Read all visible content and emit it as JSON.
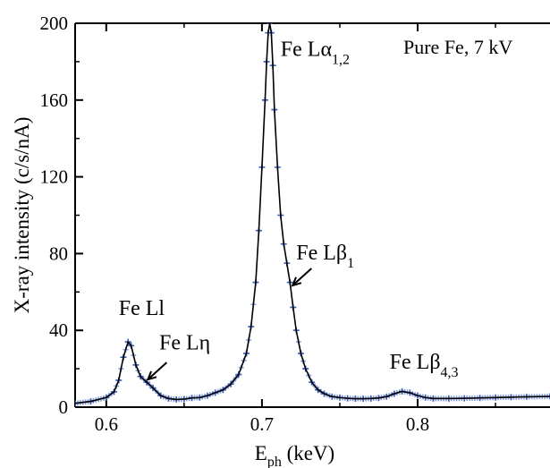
{
  "chart_data": {
    "type": "line",
    "title": "",
    "xlabel": {
      "main": "E",
      "sub": "ph",
      "unit": " (keV)"
    },
    "ylabel": "X-ray intensity (c/s/nA)",
    "xlim": [
      0.58,
      0.885
    ],
    "ylim": [
      0,
      200
    ],
    "xticks": [
      0.6,
      0.7,
      0.8
    ],
    "xtick_labels": [
      "0.6",
      "0.7",
      "0.8"
    ],
    "yticks": [
      0,
      40,
      80,
      120,
      160,
      200
    ],
    "ytick_labels": [
      "0",
      "40",
      "80",
      "120",
      "160",
      "200"
    ],
    "grid": false,
    "sample_label": "Pure Fe, 7 kV",
    "colors": {
      "data_marker": "#3f5fb8",
      "data_fill": "#8aa0dc",
      "fit_line": "#000000",
      "axis": "#000000"
    },
    "series": [
      {
        "style": "markers-with-line",
        "x": [
          0.58,
          0.59,
          0.6,
          0.605,
          0.608,
          0.611,
          0.614,
          0.616,
          0.619,
          0.622,
          0.626,
          0.63,
          0.635,
          0.64,
          0.645,
          0.65,
          0.655,
          0.66,
          0.665,
          0.67,
          0.675,
          0.68,
          0.685,
          0.69,
          0.693,
          0.696,
          0.698,
          0.7,
          0.702,
          0.703,
          0.704,
          0.705,
          0.706,
          0.707,
          0.708,
          0.71,
          0.712,
          0.714,
          0.716,
          0.718,
          0.72,
          0.722,
          0.725,
          0.728,
          0.732,
          0.736,
          0.74,
          0.745,
          0.75,
          0.755,
          0.76,
          0.765,
          0.77,
          0.775,
          0.78,
          0.785,
          0.79,
          0.795,
          0.8,
          0.805,
          0.81,
          0.82,
          0.83,
          0.84,
          0.85,
          0.86,
          0.87,
          0.885
        ],
        "y": [
          2,
          3,
          5,
          8,
          14,
          26,
          34,
          32,
          22,
          16,
          13,
          10,
          6,
          4.5,
          4,
          4.2,
          4.8,
          5,
          6,
          7.5,
          9,
          12,
          17,
          28,
          42,
          65,
          92,
          125,
          160,
          180,
          195,
          200,
          195,
          178,
          155,
          125,
          100,
          85,
          75,
          65,
          52,
          40,
          28,
          20,
          13,
          9,
          7,
          5.5,
          5,
          4.6,
          4.4,
          4.4,
          4.5,
          4.8,
          5.5,
          7,
          8.2,
          7.5,
          6,
          5,
          4.5,
          4.5,
          4.6,
          4.8,
          5,
          5.2,
          5.4,
          5.6
        ]
      }
    ],
    "annotations": [
      {
        "id": "fe-ll",
        "text": "Fe Ll",
        "sub": "",
        "x": 0.608,
        "y": 48,
        "arrow": false
      },
      {
        "id": "fe-leta",
        "text": "Fe Lη",
        "sub": "",
        "x": 0.634,
        "y": 30,
        "arrow": true,
        "arrow_to_x": 0.625,
        "arrow_to_y": 13
      },
      {
        "id": "fe-lalpha",
        "text": "Fe Lα",
        "sub": "1,2",
        "x": 0.712,
        "y": 183,
        "arrow": false
      },
      {
        "id": "fe-lbeta1",
        "text": "Fe Lβ",
        "sub": "1",
        "x": 0.722,
        "y": 77,
        "arrow": true,
        "arrow_to_x": 0.718,
        "arrow_to_y": 62
      },
      {
        "id": "fe-lbeta43",
        "text": "Fe Lβ",
        "sub": "4,3",
        "x": 0.782,
        "y": 20,
        "arrow": false
      }
    ]
  }
}
